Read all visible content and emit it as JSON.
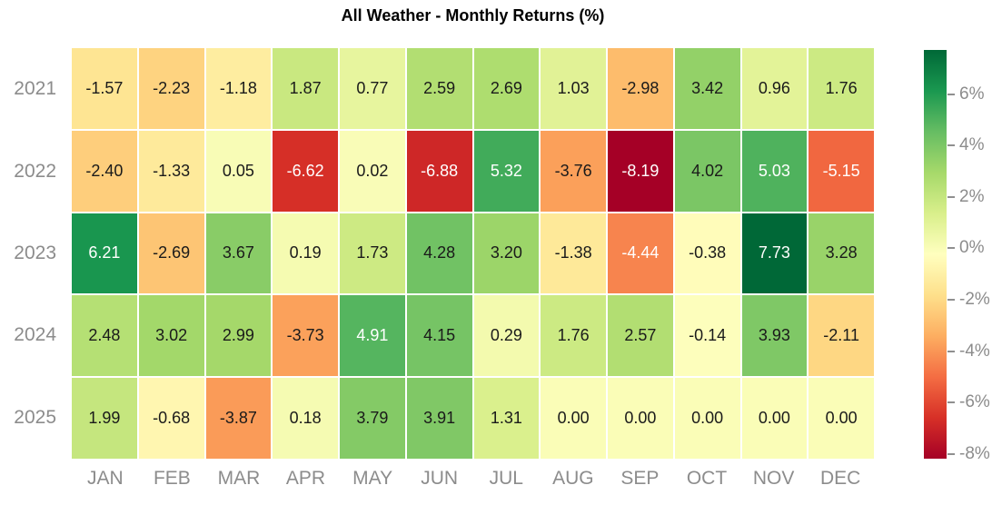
{
  "title": "All Weather - Monthly Returns (%)",
  "colors": {
    "background": "#ffffff",
    "title_text": "#000000",
    "axis_label_text": "#8c8c8c",
    "cell_text_dark": "#1a1a1a",
    "cell_text_light": "#ffffff",
    "grid_gap": "#ffffff"
  },
  "chart_data": {
    "type": "heatmap",
    "title": "All Weather - Monthly Returns (%)",
    "xlabel": "",
    "ylabel": "",
    "x_categories": [
      "JAN",
      "FEB",
      "MAR",
      "APR",
      "MAY",
      "JUN",
      "JUL",
      "AUG",
      "SEP",
      "OCT",
      "NOV",
      "DEC"
    ],
    "y_categories": [
      "2021",
      "2022",
      "2023",
      "2024",
      "2025"
    ],
    "values": [
      [
        -1.57,
        -2.23,
        -1.18,
        1.87,
        0.77,
        2.59,
        2.69,
        1.03,
        -2.98,
        3.42,
        0.96,
        1.76
      ],
      [
        -2.4,
        -1.33,
        0.05,
        -6.62,
        0.02,
        -6.88,
        5.32,
        -3.76,
        -8.19,
        4.02,
        5.03,
        -5.15
      ],
      [
        6.21,
        -2.69,
        3.67,
        0.19,
        1.73,
        4.28,
        3.2,
        -1.38,
        -4.44,
        -0.38,
        7.73,
        3.28
      ],
      [
        2.48,
        3.02,
        2.99,
        -3.73,
        4.91,
        4.15,
        0.29,
        1.76,
        2.57,
        -0.14,
        3.93,
        -2.11
      ],
      [
        1.99,
        -0.68,
        -3.87,
        0.18,
        3.79,
        3.91,
        1.31,
        0.0,
        0.0,
        0.0,
        0.0,
        0.0
      ]
    ],
    "value_decimals": 2,
    "colormap": "RdYlGn",
    "colormap_stops": [
      "#a50026",
      "#d73027",
      "#f46d43",
      "#fdae61",
      "#fee08b",
      "#ffffbf",
      "#d9ef8b",
      "#a6d96a",
      "#66bd63",
      "#1a9850",
      "#006837"
    ],
    "vmin": -8.19,
    "vmax": 7.73,
    "annotations_on": true,
    "grid": "off",
    "colorbar": {
      "position": "right",
      "tick_labels": [
        "6%",
        "4%",
        "2%",
        "0%",
        "-2%",
        "-4%",
        "-6%",
        "-8%"
      ],
      "tick_values": [
        6,
        4,
        2,
        0,
        -2,
        -4,
        -6,
        -8
      ]
    }
  }
}
